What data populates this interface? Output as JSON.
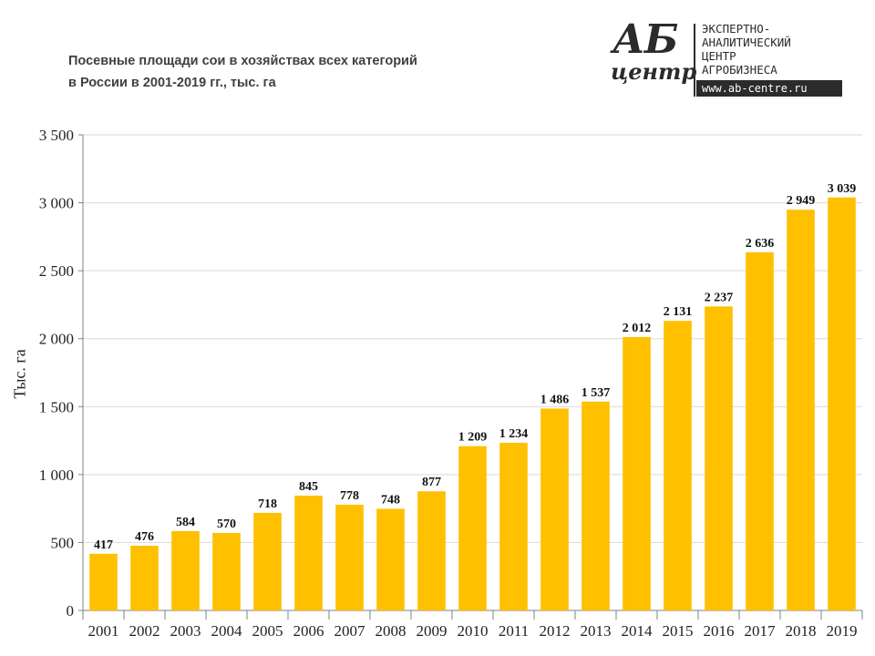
{
  "header": {
    "title_line1": "Посевные площади сои в хозяйствах всех категорий",
    "title_line2": "в России в 2001-2019 гг., тыс. га"
  },
  "logo": {
    "mark_top": "АБ",
    "mark_bottom": "центр",
    "line1": "ЭКСПЕРТНО-",
    "line2": "АНАЛИТИЧЕСКИЙ",
    "line3": "ЦЕНТР",
    "line4": "АГРОБИЗНЕСА",
    "url": "www.ab-centre.ru"
  },
  "chart_data": {
    "type": "bar",
    "title": "Посевные площади сои в хозяйствах всех категорий в России в 2001-2019 гг., тыс. га",
    "xlabel": "",
    "ylabel": "Тыс. га",
    "categories": [
      "2001",
      "2002",
      "2003",
      "2004",
      "2005",
      "2006",
      "2007",
      "2008",
      "2009",
      "2010",
      "2011",
      "2012",
      "2013",
      "2014",
      "2015",
      "2016",
      "2017",
      "2018",
      "2019"
    ],
    "values": [
      417,
      476,
      584,
      570,
      718,
      845,
      778,
      748,
      877,
      1209,
      1234,
      1486,
      1537,
      2012,
      2131,
      2237,
      2636,
      2949,
      3039
    ],
    "data_labels": [
      "417",
      "476",
      "584",
      "570",
      "718",
      "845",
      "778",
      "748",
      "877",
      "1 209",
      "1 234",
      "1 486",
      "1 537",
      "2 012",
      "2 131",
      "2 237",
      "2 636",
      "2 949",
      "3 039"
    ],
    "ylim": [
      0,
      3500
    ],
    "yticks": [
      0,
      500,
      1000,
      1500,
      2000,
      2500,
      3000,
      3500
    ],
    "ytick_labels": [
      "0",
      "500",
      "1 000",
      "1 500",
      "2 000",
      "2 500",
      "3 000",
      "3 500"
    ],
    "grid": true,
    "bar_color": "#FFC000"
  }
}
